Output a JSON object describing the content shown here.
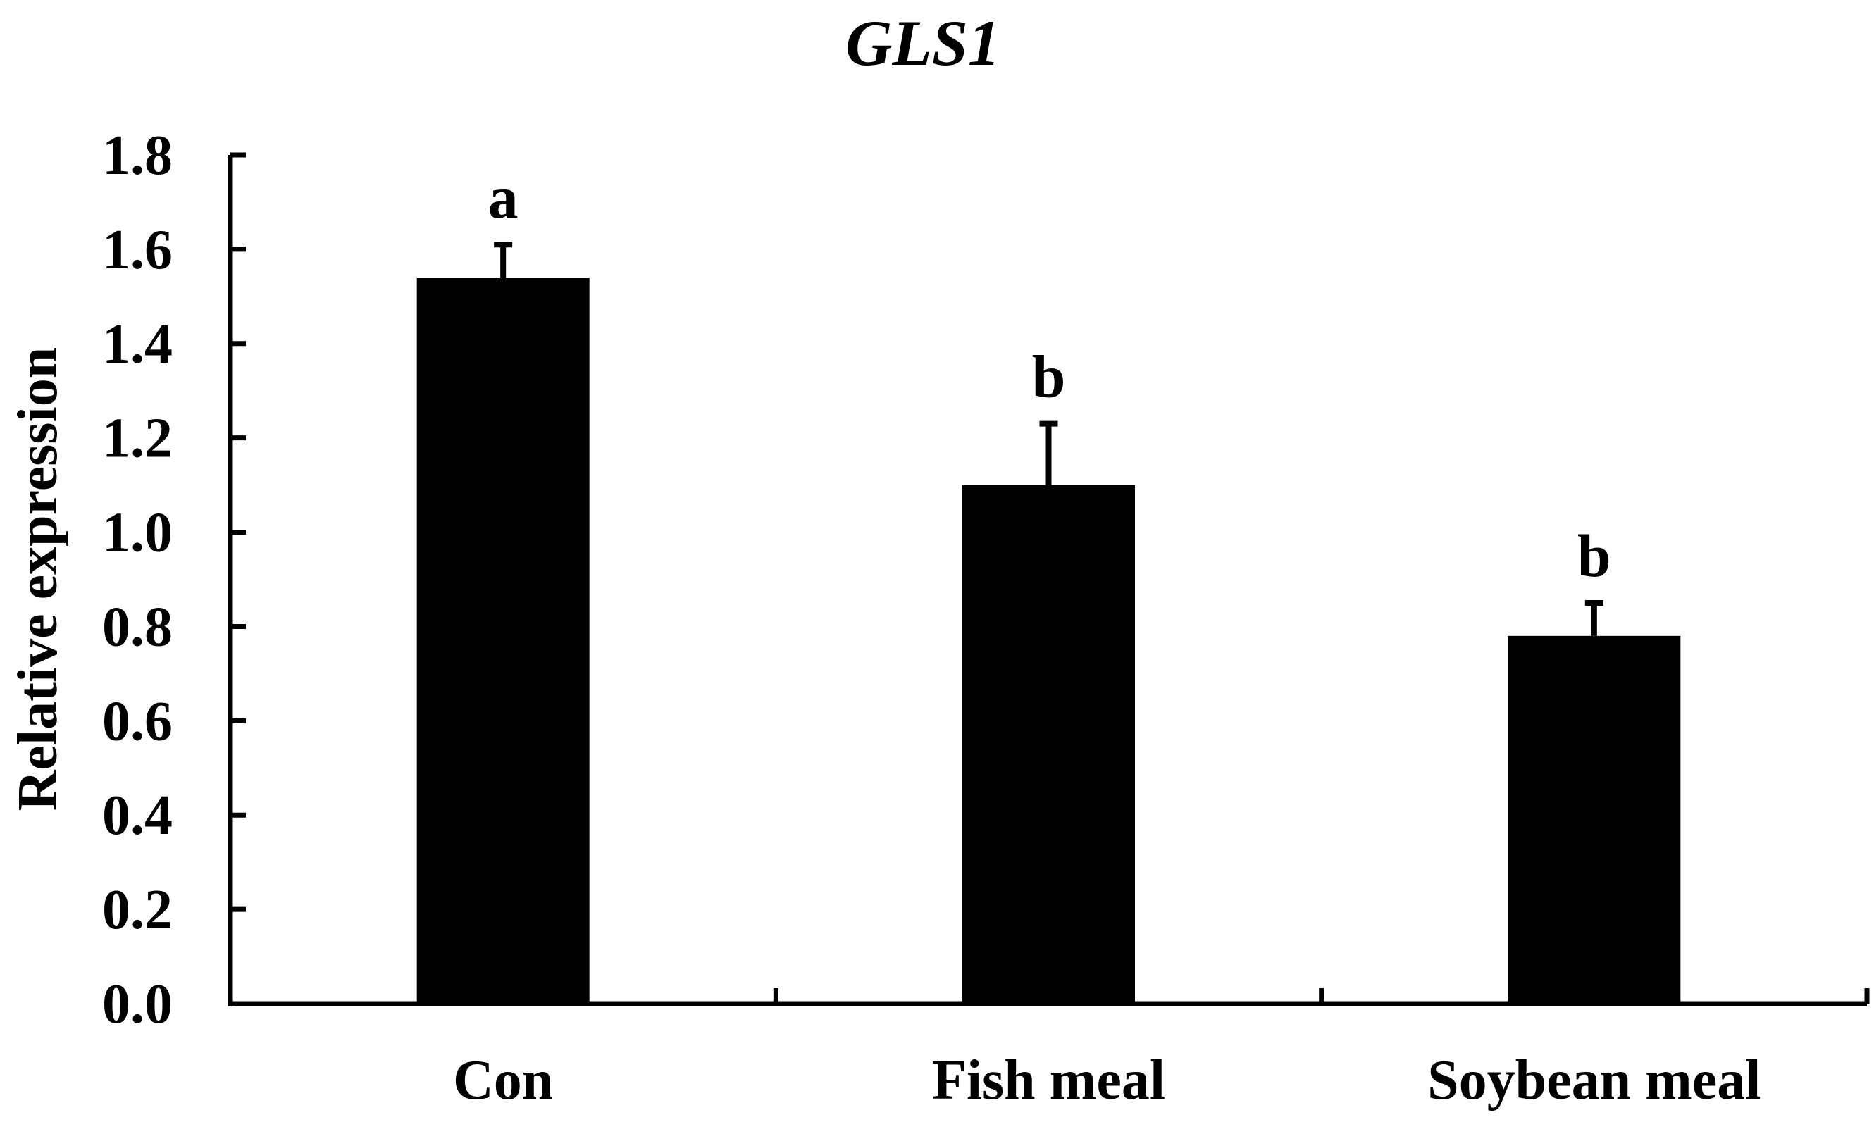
{
  "chart_data": {
    "type": "bar",
    "title": "GLS1",
    "xlabel": "",
    "ylabel": "Relative expression",
    "categories": [
      "Con",
      "Fish meal",
      "Soybean meal"
    ],
    "values": [
      1.54,
      1.1,
      0.78
    ],
    "errors": [
      0.07,
      0.13,
      0.07
    ],
    "significance": [
      "a",
      "b",
      "b"
    ],
    "ylim": [
      0,
      1.8
    ],
    "yticks": [
      "0.0",
      "0.2",
      "0.4",
      "0.6",
      "0.8",
      "1.0",
      "1.2",
      "1.4",
      "1.6",
      "1.8"
    ],
    "grid": false,
    "legend": "none",
    "bar_color": "#000000"
  }
}
